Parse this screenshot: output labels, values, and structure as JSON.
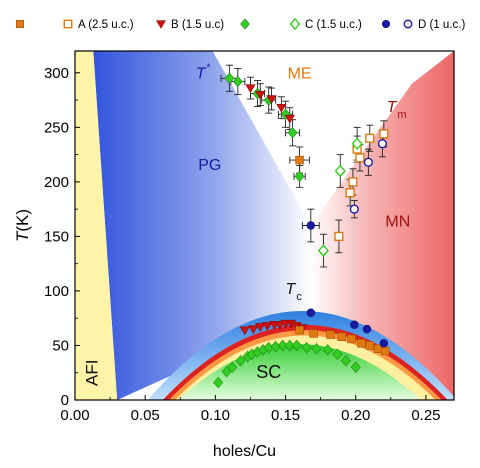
{
  "chart_data": {
    "type": "scatter",
    "xlabel": "holes/Cu",
    "ylabel_italic": "T",
    "ylabel_unit": "(K)",
    "xlim": [
      0.0,
      0.27
    ],
    "ylim": [
      0,
      320
    ],
    "xticks": [
      0.0,
      0.05,
      0.1,
      0.15,
      0.2,
      0.25
    ],
    "xtick_labels": [
      "0.00",
      "0.05",
      "0.10",
      "0.15",
      "0.20",
      "0.25"
    ],
    "yticks": [
      0,
      50,
      100,
      150,
      200,
      250,
      300
    ],
    "ytick_labels": [
      "0",
      "50",
      "100",
      "150",
      "200",
      "250",
      "300"
    ],
    "region_labels": [
      {
        "id": "pg",
        "text": "PG",
        "x": 0.096,
        "y": 211,
        "color": "#1a1aa0"
      },
      {
        "id": "me",
        "text": "ME",
        "x": 0.16,
        "y": 295,
        "color": "#e07a10"
      },
      {
        "id": "mn",
        "text": "MN",
        "x": 0.23,
        "y": 159,
        "color": "#a01010"
      },
      {
        "id": "sc",
        "text": "SC",
        "x": 0.138,
        "y": 20,
        "color": "#111111"
      },
      {
        "id": "afi",
        "text": "AFI",
        "x": 0.016,
        "y": 25,
        "color": "#111111"
      }
    ],
    "line_labels": [
      {
        "id": "tstar",
        "main": "T",
        "sup": "*",
        "x": 0.086,
        "y": 295,
        "color": "#1a1aa0"
      },
      {
        "id": "tm",
        "main": "T",
        "sub": "m",
        "x": 0.222,
        "y": 264,
        "color": "#a01010"
      },
      {
        "id": "tc",
        "main": "T",
        "sub": "c",
        "x": 0.15,
        "y": 97,
        "color": "#111111"
      }
    ],
    "legend": {
      "position": "top",
      "entries": [
        {
          "symbol": "square-filled",
          "color": "#e07a10",
          "label": ""
        },
        {
          "symbol": "square-open",
          "color": "#e07a10",
          "label": "A (2.5 u.c.)"
        },
        {
          "symbol": "triangle-filled",
          "color": "#cc1111",
          "label": "B (1.5 u.c)"
        },
        {
          "symbol": "diamond-filled",
          "color": "#33cc22",
          "label": ""
        },
        {
          "symbol": "diamond-open",
          "color": "#33cc22",
          "label": "C (1.5 u.c.)"
        },
        {
          "symbol": "circle-filled",
          "color": "#1a1aa0",
          "label": ""
        },
        {
          "symbol": "circle-open",
          "color": "#1a1aa0",
          "label": "D (1 u.c.)"
        }
      ]
    },
    "series": [
      {
        "id": "tstar_diamond",
        "marker": "diamond-filled",
        "color": "#33cc22",
        "points": [
          [
            0.11,
            295
          ],
          [
            0.116,
            292
          ],
          [
            0.13,
            281
          ],
          [
            0.138,
            275
          ],
          [
            0.15,
            262
          ],
          [
            0.155,
            245
          ],
          [
            0.16,
            205
          ]
        ],
        "xerr": [
          0.006,
          0.005,
          0.005,
          0.005,
          0.005,
          0.005,
          0.004
        ],
        "yerr": [
          12,
          12,
          12,
          12,
          12,
          12,
          10
        ]
      },
      {
        "id": "tstar_triangle",
        "marker": "triangle-filled",
        "color": "#cc1111",
        "points": [
          [
            0.125,
            286
          ],
          [
            0.132,
            280
          ],
          [
            0.14,
            276
          ],
          [
            0.147,
            268
          ],
          [
            0.153,
            258
          ]
        ],
        "xerr": [
          0,
          0,
          0,
          0,
          0
        ],
        "yerr": [
          10,
          10,
          10,
          10,
          10
        ]
      },
      {
        "id": "tstar_square",
        "marker": "square-filled",
        "color": "#e07a10",
        "points": [
          [
            0.16,
            220
          ]
        ],
        "xerr": [
          0.007
        ],
        "yerr": [
          12
        ]
      },
      {
        "id": "tstar_circle",
        "marker": "circle-filled",
        "color": "#1a1aa0",
        "points": [
          [
            0.168,
            160
          ]
        ],
        "xerr": [
          0.006
        ],
        "yerr": [
          15
        ]
      },
      {
        "id": "tm_square",
        "marker": "square-open",
        "color": "#e07a10",
        "points": [
          [
            0.188,
            150
          ],
          [
            0.196,
            190
          ],
          [
            0.198,
            200
          ],
          [
            0.201,
            230
          ],
          [
            0.203,
            222
          ],
          [
            0.21,
            240
          ],
          [
            0.22,
            244
          ]
        ],
        "xerr": [
          0,
          0,
          0,
          0,
          0,
          0,
          0
        ],
        "yerr": [
          15,
          12,
          12,
          12,
          12,
          12,
          12
        ]
      },
      {
        "id": "tm_diamond",
        "marker": "diamond-open",
        "color": "#33cc22",
        "points": [
          [
            0.177,
            137
          ],
          [
            0.189,
            210
          ],
          [
            0.201,
            235
          ]
        ],
        "xerr": [
          0,
          0,
          0
        ],
        "yerr": [
          15,
          15,
          15
        ]
      },
      {
        "id": "tm_circle",
        "marker": "circle-open",
        "color": "#1a1aa0",
        "points": [
          [
            0.199,
            175
          ],
          [
            0.209,
            218
          ],
          [
            0.219,
            235
          ]
        ],
        "xerr": [
          0,
          0,
          0
        ],
        "yerr": [
          8,
          12,
          12
        ]
      },
      {
        "id": "tc_triangle",
        "marker": "triangle-filled",
        "color": "#cc1111",
        "points": [
          [
            0.121,
            64
          ],
          [
            0.127,
            65
          ],
          [
            0.132,
            67
          ],
          [
            0.137,
            68
          ],
          [
            0.142,
            69
          ],
          [
            0.146,
            69
          ],
          [
            0.15,
            70
          ],
          [
            0.154,
            70
          ],
          [
            0.158,
            68
          ],
          [
            0.162,
            66
          ]
        ],
        "xerr": [],
        "yerr": []
      },
      {
        "id": "tc_square",
        "marker": "square-filled",
        "color": "#e07a10",
        "points": [
          [
            0.16,
            64
          ],
          [
            0.17,
            61
          ],
          [
            0.182,
            60
          ],
          [
            0.19,
            58
          ],
          [
            0.197,
            56
          ],
          [
            0.204,
            52
          ],
          [
            0.21,
            50
          ],
          [
            0.216,
            47
          ],
          [
            0.221,
            45
          ]
        ],
        "xerr": [],
        "yerr": []
      },
      {
        "id": "tc_circle",
        "marker": "circle-filled",
        "color": "#1a1aa0",
        "points": [
          [
            0.168,
            80
          ],
          [
            0.199,
            69
          ],
          [
            0.208,
            65
          ],
          [
            0.22,
            52
          ]
        ],
        "xerr": [],
        "yerr": []
      },
      {
        "id": "tc_diamond",
        "marker": "diamond-filled",
        "color": "#33cc22",
        "points": [
          [
            0.102,
            16
          ],
          [
            0.108,
            26
          ],
          [
            0.112,
            30
          ],
          [
            0.118,
            36
          ],
          [
            0.123,
            40
          ],
          [
            0.126,
            42
          ],
          [
            0.13,
            44
          ],
          [
            0.134,
            46
          ],
          [
            0.138,
            48
          ],
          [
            0.143,
            49
          ],
          [
            0.148,
            50
          ],
          [
            0.153,
            50
          ],
          [
            0.158,
            50
          ],
          [
            0.165,
            48
          ],
          [
            0.172,
            47
          ],
          [
            0.18,
            46
          ],
          [
            0.187,
            42
          ],
          [
            0.193,
            36
          ],
          [
            0.2,
            30
          ]
        ],
        "xerr": [],
        "yerr": []
      }
    ],
    "phase_regions": {
      "afi_boundary": [
        [
          0.0,
          320
        ],
        [
          0.013,
          320
        ],
        [
          0.03,
          0
        ],
        [
          0.0,
          0
        ]
      ],
      "pg_boundary": [
        [
          0.013,
          320
        ],
        [
          0.098,
          320
        ],
        [
          0.168,
          160
        ],
        [
          0.168,
          80
        ],
        [
          0.03,
          0
        ]
      ],
      "mn_boundary": [
        [
          0.27,
          320
        ],
        [
          0.27,
          0
        ],
        [
          0.24,
          0
        ],
        [
          0.168,
          80
        ],
        [
          0.168,
          160
        ],
        [
          0.24,
          290
        ]
      ],
      "sc_dome_center": 0.162,
      "sc_dome_halfwidth": 0.108,
      "sc_dome_peak": 80
    },
    "colors": {
      "afi": "#fff4a8",
      "pg": "#3355dd",
      "mn": "#ee6666",
      "dome_outer": "#3b8fe8",
      "dome_red": "#dd2222",
      "dome_orange": "#ff9944",
      "dome_yellow": "#fff0a0",
      "dome_green": "#44dd44",
      "tick_color": "#000000"
    }
  }
}
